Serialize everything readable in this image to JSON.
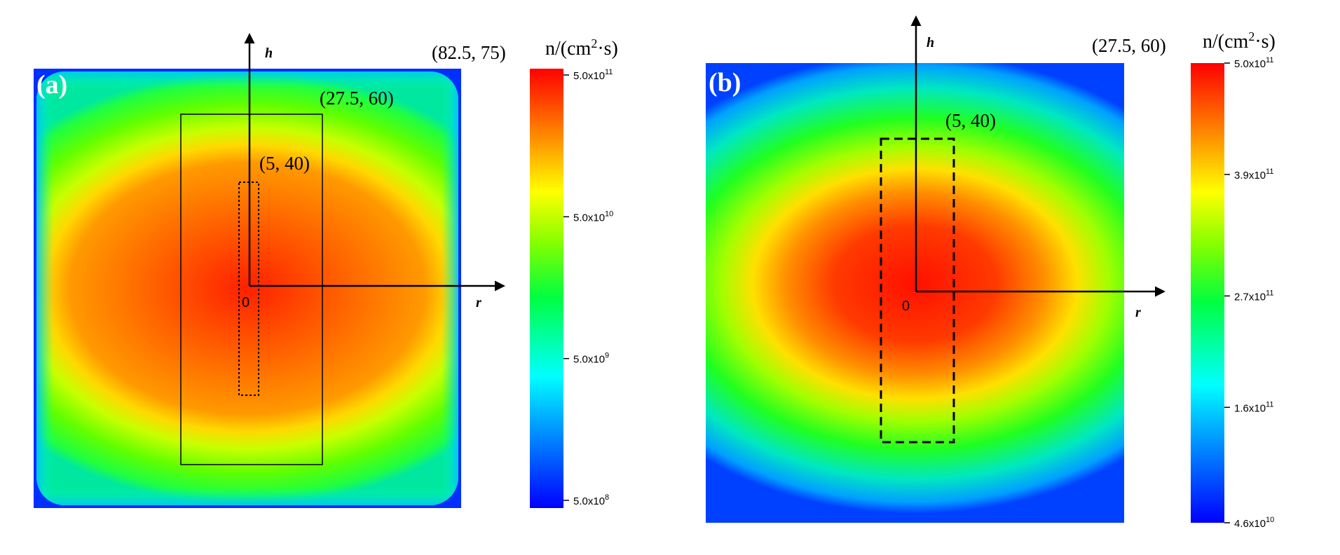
{
  "chart_data": [
    {
      "type": "heatmap",
      "panel_label": "(a)",
      "axes": {
        "vertical": "h",
        "horizontal": "r",
        "origin": "0"
      },
      "corner_labels": {
        "outer": "(82.5, 75)",
        "middle": "(27.5, 60)",
        "inner": "(5, 40)"
      },
      "regions": [
        {
          "name": "outer",
          "half_width": 82.5,
          "height": 75
        },
        {
          "name": "middle",
          "half_width": 27.5,
          "height": 60,
          "style": "solid"
        },
        {
          "name": "inner",
          "half_width": 5,
          "height": 40,
          "style": "dotted"
        }
      ],
      "colorbar": {
        "unit_text": "n/(cm",
        "unit_sup": "2",
        "unit_tail": "·s)",
        "scale": "log",
        "range": [
          500000000.0,
          500000000000.0
        ],
        "ticks": [
          {
            "value": 500000000000.0,
            "mantissa": "5.0x10",
            "exp": "11"
          },
          {
            "value": 50000000000.0,
            "mantissa": "5.0x10",
            "exp": "10"
          },
          {
            "value": 5000000000.0,
            "mantissa": "5.0x10",
            "exp": "9"
          },
          {
            "value": 500000000.0,
            "mantissa": "5.0x10",
            "exp": "8"
          }
        ]
      }
    },
    {
      "type": "heatmap",
      "panel_label": "(b)",
      "axes": {
        "vertical": "h",
        "horizontal": "r",
        "origin": "0"
      },
      "corner_labels": {
        "outer": "(27.5, 60)",
        "inner": "(5, 40)"
      },
      "regions": [
        {
          "name": "outer",
          "half_width": 27.5,
          "height": 60
        },
        {
          "name": "inner",
          "half_width": 5,
          "height": 40,
          "style": "dashed"
        }
      ],
      "colorbar": {
        "unit_text": "n/(cm",
        "unit_sup": "2",
        "unit_tail": "·s)",
        "scale": "linear",
        "range": [
          46000000000.0,
          500000000000.0
        ],
        "ticks": [
          {
            "value": 500000000000.0,
            "mantissa": "5.0x10",
            "exp": "11"
          },
          {
            "value": 390000000000.0,
            "mantissa": "3.9x10",
            "exp": "11"
          },
          {
            "value": 270000000000.0,
            "mantissa": "2.7x10",
            "exp": "11"
          },
          {
            "value": 160000000000.0,
            "mantissa": "1.6x10",
            "exp": "11"
          },
          {
            "value": 46000000000.0,
            "mantissa": "4.6x10",
            "exp": "10"
          }
        ]
      }
    }
  ]
}
